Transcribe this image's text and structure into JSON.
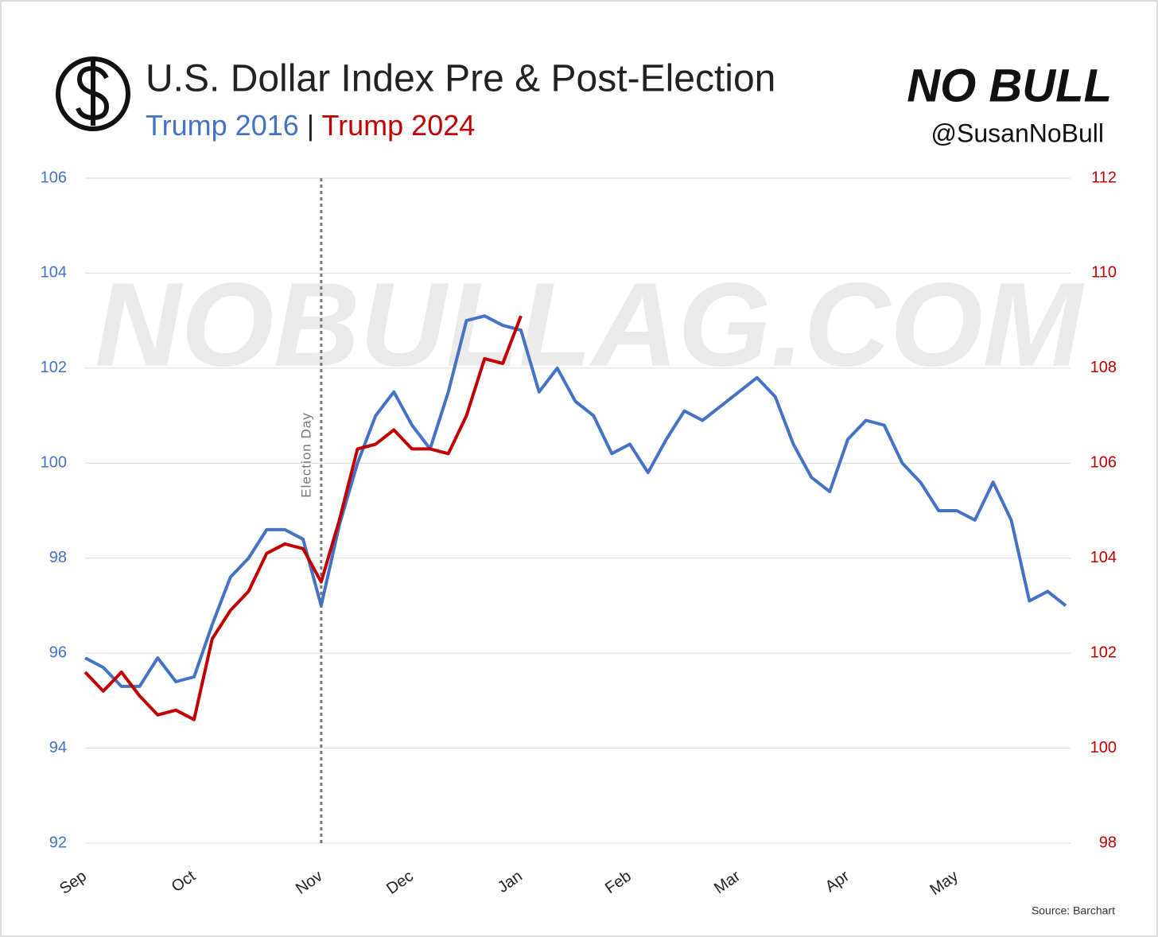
{
  "chart_data": {
    "type": "line",
    "title": "U.S. Dollar Index Pre & Post-Election",
    "subtitle_separator": "|",
    "brand": "NO BULL",
    "handle": "@SusanNoBull",
    "watermark": "NOBULLAG.COM",
    "source": "Source: Barchart",
    "annotation": {
      "text": "Election Day",
      "category": "Nov"
    },
    "categories": [
      "Sep",
      null,
      null,
      null,
      null,
      null,
      "Oct",
      null,
      null,
      null,
      null,
      null,
      null,
      "Nov",
      null,
      null,
      null,
      null,
      "Dec",
      null,
      null,
      null,
      null,
      null,
      "Jan",
      null,
      null,
      null,
      null,
      null,
      "Feb",
      null,
      null,
      null,
      null,
      null,
      "Mar",
      null,
      null,
      null,
      null,
      null,
      "Apr",
      null,
      null,
      null,
      null,
      null,
      "May",
      null,
      null,
      null,
      null,
      null,
      null
    ],
    "series": [
      {
        "name": "Trump 2016",
        "color": "#4472c4",
        "axis": "y",
        "values": [
          95.9,
          95.7,
          95.3,
          95.3,
          95.9,
          95.4,
          95.5,
          96.6,
          97.6,
          98.0,
          98.6,
          98.6,
          98.4,
          97.0,
          98.7,
          100.0,
          101.0,
          101.5,
          100.8,
          100.3,
          101.5,
          103.0,
          103.1,
          102.9,
          102.8,
          101.5,
          102.0,
          101.3,
          101.0,
          100.2,
          100.4,
          99.8,
          100.5,
          101.1,
          100.9,
          101.2,
          101.5,
          101.8,
          101.4,
          100.4,
          99.7,
          99.4,
          100.5,
          100.9,
          100.8,
          100.0,
          99.6,
          99.0,
          99.0,
          98.8,
          99.6,
          98.8,
          97.1,
          97.3,
          97.0
        ]
      },
      {
        "name": "Trump 2024",
        "color": "#c00000",
        "axis": "y2",
        "values": [
          101.6,
          101.2,
          101.6,
          101.1,
          100.7,
          100.8,
          100.6,
          102.3,
          102.9,
          103.3,
          104.1,
          104.3,
          104.2,
          103.5,
          104.8,
          106.3,
          106.4,
          106.7,
          106.3,
          106.3,
          106.2,
          107.0,
          108.2,
          108.1,
          109.1,
          null,
          null,
          null,
          null,
          null,
          null,
          null,
          null,
          null,
          null,
          null,
          null,
          null,
          null,
          null,
          null,
          null,
          null,
          null,
          null,
          null,
          null,
          null,
          null,
          null,
          null,
          null,
          null,
          null,
          null
        ]
      }
    ],
    "ylim": [
      92,
      106
    ],
    "yticks": [
      92,
      94,
      96,
      98,
      100,
      102,
      104,
      106
    ],
    "y2lim": [
      98,
      112
    ],
    "y2ticks": [
      98,
      100,
      102,
      104,
      106,
      108,
      110,
      112
    ],
    "grid": true
  }
}
